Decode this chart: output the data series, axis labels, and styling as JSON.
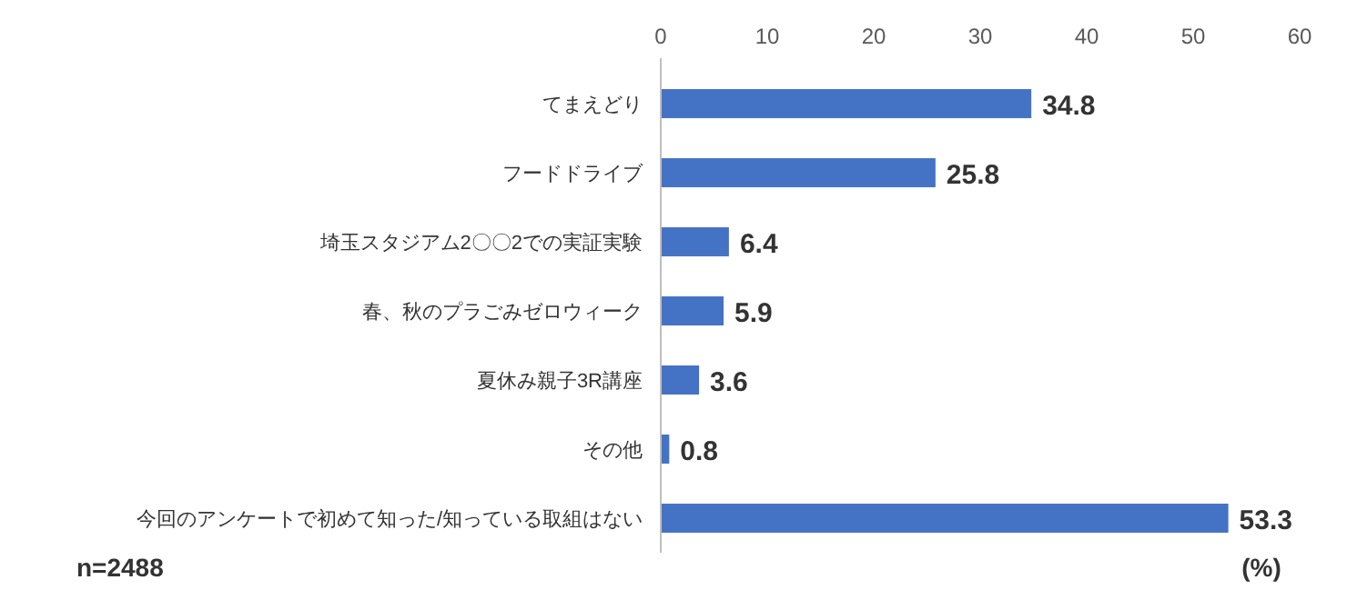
{
  "chart_data": {
    "type": "bar",
    "orientation": "horizontal",
    "categories": [
      "てまえどり",
      "フードドライブ",
      "埼玉スタジアム2〇〇2での実証実験",
      "春、秋のプラごみゼロウィーク",
      "夏休み親子3R講座",
      "その他",
      "今回のアンケートで初めて知った/知っている取組はない"
    ],
    "values": [
      34.8,
      25.8,
      6.4,
      5.9,
      3.6,
      0.8,
      53.3
    ],
    "color": "#4472c4",
    "xlim": [
      0,
      60
    ],
    "xticks": [
      0,
      10,
      20,
      30,
      40,
      50,
      60
    ],
    "grid": false,
    "data_labels": true,
    "annotations": [
      "n=2488",
      "(%)"
    ]
  }
}
